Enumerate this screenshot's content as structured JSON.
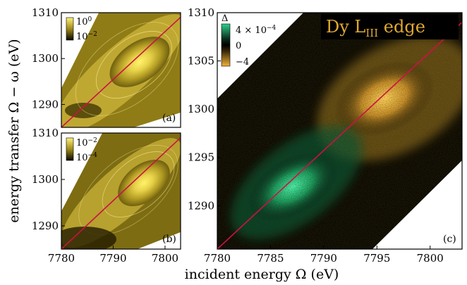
{
  "figure": {
    "ylabel": "energy transfer Ω − ω (eV)",
    "xlabel": "incident energy Ω (eV)"
  },
  "chart_data": [
    {
      "type": "heatmap",
      "panel": "(a)",
      "xlim": [
        7780,
        7803
      ],
      "ylim": [
        1285,
        1310
      ],
      "yticks": [
        "1290",
        "1300",
        "1310"
      ],
      "colorbar": {
        "ticks": [
          "10^0",
          "10^-2"
        ],
        "scale": "log",
        "colormap": "black-to-yellow"
      },
      "features": [
        {
          "type": "peak",
          "x": 7794,
          "y": 1300
        },
        {
          "type": "peak",
          "x": 7786,
          "y": 1289
        }
      ],
      "diagonal": {
        "x": [
          7780,
          7803
        ],
        "y": [
          1285,
          1309
        ],
        "color": "#cc1144"
      }
    },
    {
      "type": "heatmap",
      "panel": "(b)",
      "xlim": [
        7780,
        7803
      ],
      "ylim": [
        1285,
        1310
      ],
      "xticks": [
        "7780",
        "7790",
        "7800"
      ],
      "yticks": [
        "1290",
        "1300",
        "1310"
      ],
      "colorbar": {
        "ticks": [
          "10^-2",
          "10^-4"
        ],
        "scale": "log",
        "colormap": "black-to-yellow"
      },
      "features": [
        {
          "type": "peak",
          "x": 7795,
          "y": 1300
        }
      ],
      "diagonal": {
        "x": [
          7780,
          7803
        ],
        "y": [
          1285,
          1309
        ],
        "color": "#cc1144"
      }
    },
    {
      "type": "heatmap",
      "panel": "(c)",
      "title": "Dy L_III edge",
      "xlim": [
        7780,
        7803
      ],
      "ylim": [
        1285.5,
        1310
      ],
      "xticks": [
        "7780",
        "7785",
        "7790",
        "7795",
        "7800"
      ],
      "yticks": [
        "1290",
        "1295",
        "1300",
        "1305",
        "1310"
      ],
      "colorbar": {
        "label": "Δ",
        "ticks": [
          "4 × 10^-4",
          "0",
          "−4"
        ],
        "colormap": "yellow-black-green"
      },
      "features": [
        {
          "type": "positive",
          "x": 7788,
          "y": 1291,
          "color": "#2fd08a"
        },
        {
          "type": "negative",
          "x": 7796,
          "y": 1301,
          "color": "#f0b33a"
        }
      ],
      "diagonal": {
        "x": [
          7780,
          7803
        ],
        "y": [
          1285.5,
          1309
        ],
        "color": "#cc1144"
      }
    }
  ]
}
